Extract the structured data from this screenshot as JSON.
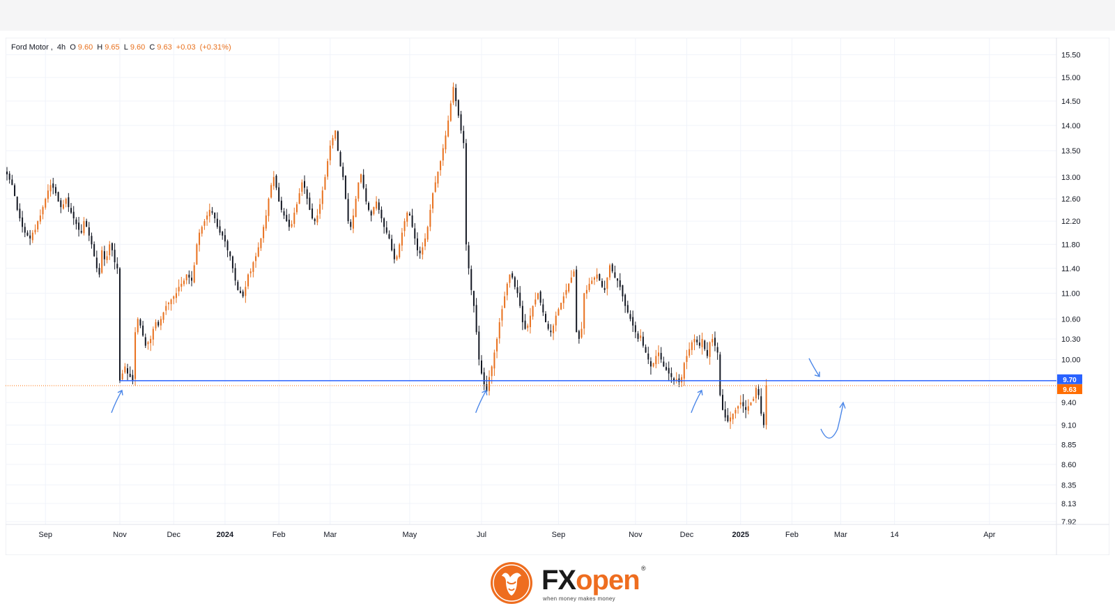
{
  "header": {
    "symbol": "Ford Motor",
    "interval": "4h",
    "open_label": "O",
    "open": "9.60",
    "high_label": "H",
    "high": "9.65",
    "low_label": "L",
    "low": "9.60",
    "close_label": "C",
    "close": "9.63",
    "change": "+0.03",
    "change_pct": "(+0.31%)"
  },
  "colors": {
    "up": "#e8701d",
    "down": "#131722",
    "support_line": "#2962ff",
    "annotation": "#4a86e8",
    "price_tag": "#ff6d00",
    "level_tag": "#2962ff",
    "brand": "#ee6d1f"
  },
  "chart_data": {
    "type": "candlestick",
    "title": "",
    "xlabel": "",
    "ylabel": "",
    "ylim": [
      7.92,
      15.6
    ],
    "y_scale": "log",
    "y_ticks": [
      "15.50",
      "15.00",
      "14.50",
      "14.00",
      "13.50",
      "13.00",
      "12.60",
      "12.20",
      "11.80",
      "11.40",
      "11.00",
      "10.60",
      "10.30",
      "10.00",
      "9.40",
      "9.10",
      "8.85",
      "8.60",
      "8.35",
      "8.13",
      "7.92"
    ],
    "x_ticks": [
      {
        "label": "Sep",
        "i": 15,
        "bold": false
      },
      {
        "label": "Nov",
        "i": 44,
        "bold": false
      },
      {
        "label": "Dec",
        "i": 65,
        "bold": false
      },
      {
        "label": "2024",
        "i": 85,
        "bold": true
      },
      {
        "label": "Feb",
        "i": 106,
        "bold": false
      },
      {
        "label": "Mar",
        "i": 126,
        "bold": false
      },
      {
        "label": "May",
        "i": 157,
        "bold": false
      },
      {
        "label": "Jul",
        "i": 185,
        "bold": false
      },
      {
        "label": "Sep",
        "i": 215,
        "bold": false
      },
      {
        "label": "Nov",
        "i": 245,
        "bold": false
      },
      {
        "label": "Dec",
        "i": 265,
        "bold": false
      },
      {
        "label": "2025",
        "i": 286,
        "bold": true
      },
      {
        "label": "Feb",
        "i": 306,
        "bold": false
      },
      {
        "label": "Mar",
        "i": 325,
        "bold": false
      },
      {
        "label": "14",
        "i": 346,
        "bold": false
      },
      {
        "label": "Apr",
        "i": 383,
        "bold": false
      }
    ],
    "x_domain": [
      0,
      395
    ],
    "series": [
      {
        "values": [
          13.05,
          12.95,
          12.85,
          12.65,
          12.4,
          12.25,
          12.1,
          12.0,
          11.95,
          11.9,
          12.0,
          12.05,
          12.2,
          12.3,
          12.45,
          12.6,
          12.75,
          12.85,
          12.8,
          12.7,
          12.55,
          12.45,
          12.5,
          12.6,
          12.45,
          12.35,
          12.25,
          12.15,
          12.05,
          12.0,
          12.2,
          12.1,
          11.95,
          11.8,
          11.6,
          11.4,
          11.3,
          11.7,
          11.55,
          11.6,
          11.8,
          11.7,
          11.5,
          11.4,
          9.7,
          9.8,
          9.9,
          9.8,
          9.75,
          9.7,
          10.4,
          10.6,
          10.5,
          10.35,
          10.2,
          10.25,
          10.3,
          10.45,
          10.55,
          10.5,
          10.6,
          10.7,
          10.8,
          10.85,
          10.9,
          10.95,
          11.0,
          11.1,
          11.15,
          11.2,
          11.3,
          11.25,
          11.2,
          11.45,
          11.8,
          12.0,
          12.1,
          12.2,
          12.3,
          12.4,
          12.35,
          12.25,
          12.1,
          12.0,
          11.95,
          11.85,
          11.7,
          11.6,
          11.4,
          11.2,
          11.05,
          11.0,
          10.95,
          11.1,
          11.3,
          11.35,
          11.5,
          11.6,
          11.75,
          11.9,
          12.1,
          12.3,
          12.6,
          12.85,
          13.0,
          12.8,
          12.55,
          12.4,
          12.3,
          12.2,
          12.1,
          12.15,
          12.35,
          12.5,
          12.7,
          12.9,
          12.8,
          12.6,
          12.4,
          12.25,
          12.2,
          12.3,
          12.5,
          12.75,
          13.0,
          13.3,
          13.6,
          13.75,
          13.9,
          13.5,
          13.2,
          13.0,
          12.6,
          12.2,
          12.1,
          12.3,
          12.6,
          12.9,
          13.05,
          12.8,
          12.55,
          12.4,
          12.3,
          12.45,
          12.55,
          12.4,
          12.25,
          12.1,
          12.0,
          11.9,
          11.7,
          11.55,
          11.6,
          11.8,
          12.0,
          12.2,
          12.35,
          12.3,
          12.1,
          11.9,
          11.7,
          11.65,
          11.75,
          11.9,
          12.1,
          12.4,
          12.7,
          12.9,
          13.1,
          13.3,
          13.55,
          13.8,
          14.1,
          14.45,
          14.8,
          14.5,
          14.2,
          13.9,
          13.65,
          11.8,
          11.4,
          11.05,
          10.8,
          10.4,
          10.0,
          9.8,
          9.65,
          9.55,
          9.75,
          9.9,
          10.1,
          10.3,
          10.55,
          10.75,
          10.95,
          11.15,
          11.3,
          11.25,
          11.1,
          11.0,
          10.8,
          10.55,
          10.45,
          10.5,
          10.65,
          10.8,
          10.9,
          11.0,
          10.85,
          10.7,
          10.55,
          10.45,
          10.4,
          10.5,
          10.65,
          10.75,
          10.85,
          10.95,
          11.05,
          11.15,
          11.25,
          11.35,
          10.4,
          10.3,
          10.45,
          11.0,
          11.05,
          11.15,
          11.2,
          11.25,
          11.3,
          11.2,
          11.1,
          11.05,
          11.25,
          11.45,
          11.35,
          11.25,
          11.2,
          11.1,
          10.95,
          10.8,
          10.7,
          10.6,
          10.5,
          10.4,
          10.3,
          10.35,
          10.2,
          10.1,
          10.0,
          9.9,
          9.95,
          10.05,
          10.1,
          10.0,
          9.9,
          9.85,
          9.8,
          9.75,
          9.7,
          9.72,
          9.68,
          9.75,
          9.95,
          10.05,
          10.15,
          10.25,
          10.3,
          10.25,
          10.2,
          10.3,
          10.15,
          10.05,
          10.25,
          10.3,
          10.2,
          10.1,
          9.5,
          9.3,
          9.2,
          9.15,
          9.2,
          9.25,
          9.3,
          9.35,
          9.4,
          9.35,
          9.3,
          9.35,
          9.4,
          9.45,
          9.6,
          9.5,
          9.25,
          9.1,
          9.63
        ]
      }
    ],
    "support_level": 9.7,
    "last_price": 9.63,
    "support_label": "9.70",
    "price_label": "9.63",
    "support_touch_bars": [
      44,
      186,
      270
    ],
    "rebound_bar": 320,
    "grid": true,
    "legend": "top-left"
  },
  "branding": {
    "brand_left": "FX",
    "brand_right": "open",
    "registered": "®",
    "tagline": "when money makes money"
  }
}
